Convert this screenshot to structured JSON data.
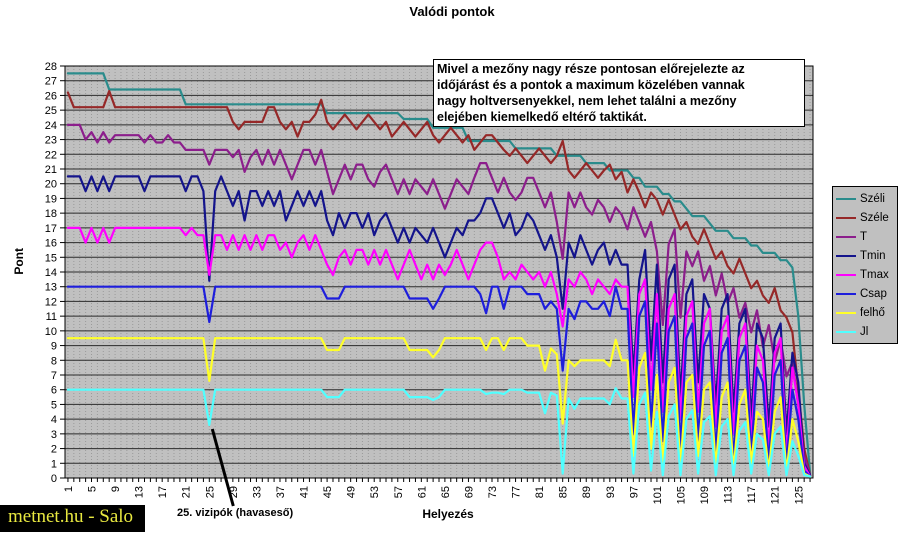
{
  "title": "Valódi pontok",
  "watermark": "metnet.hu - Salo",
  "annotation_text": "Mivel a mezőny nagy része pontosan előrejelezte az\nidőjárást és a pontok a maximum közelében vannak\nnagy holtversenyekkel, nem lehet találni a mezőny\nelejében kiemelkedő eltérő taktikát.",
  "callout_text": "25. vizipók (havaseső)",
  "chart_data": {
    "type": "line",
    "title": "Valódi pontok",
    "xlabel": "Helyezés",
    "ylabel": "Pont",
    "x_start": 1,
    "x_end": 127,
    "x_label_every": 4,
    "ylim": [
      0,
      28
    ],
    "y_tick_step": 1,
    "grid": true,
    "legend_position": "right",
    "plot_background": "#c0c0c0",
    "gridline_color": "#2b2b2b",
    "minor_vertical_color": "#9a9a9a",
    "callout": {
      "x": 25,
      "y": 3.6,
      "label": "25. vizipók (havaseső)"
    },
    "series": [
      {
        "name": "Széli",
        "color": "#2a8c8c",
        "values": [
          27.5,
          27.5,
          27.5,
          27.5,
          27.5,
          27.5,
          27.5,
          26.4,
          26.4,
          26.4,
          26.4,
          26.4,
          26.4,
          26.4,
          26.4,
          26.4,
          26.4,
          26.4,
          26.4,
          26.4,
          25.4,
          25.4,
          25.4,
          25.4,
          25.4,
          25.4,
          25.4,
          25.4,
          25.4,
          25.4,
          25.4,
          25.4,
          25.4,
          25.4,
          25.4,
          25.4,
          25.4,
          25.4,
          25.4,
          25.4,
          25.4,
          25.4,
          25.4,
          25.4,
          24.8,
          24.8,
          24.8,
          24.8,
          24.8,
          24.8,
          24.8,
          24.8,
          24.8,
          24.8,
          24.8,
          24.8,
          24.8,
          24.4,
          24.4,
          24.4,
          24.4,
          24.4,
          23.8,
          23.8,
          23.8,
          23.8,
          23.8,
          23.8,
          22.9,
          22.9,
          22.9,
          22.9,
          22.9,
          22.9,
          22.9,
          22.9,
          22.4,
          22.4,
          22.4,
          22.4,
          22.4,
          22.4,
          22.4,
          21.9,
          21.9,
          21.9,
          21.9,
          21.9,
          21.4,
          21.4,
          21.4,
          21.4,
          20.9,
          20.9,
          20.9,
          20.9,
          20.4,
          20.4,
          19.8,
          19.8,
          19.8,
          19.3,
          19.3,
          18.8,
          18.8,
          18.3,
          17.8,
          17.8,
          17.8,
          17.3,
          16.8,
          16.8,
          16.8,
          16.3,
          16.3,
          16.3,
          15.8,
          15.8,
          15.3,
          15.3,
          15.3,
          14.8,
          14.8,
          14.3,
          11.0,
          5.0,
          0.3
        ]
      },
      {
        "name": "Széle",
        "color": "#962828",
        "values": [
          26.2,
          25.2,
          25.2,
          25.2,
          25.2,
          25.2,
          25.2,
          26.3,
          25.2,
          25.2,
          25.2,
          25.2,
          25.2,
          25.2,
          25.2,
          25.2,
          25.2,
          25.2,
          25.2,
          25.2,
          25.2,
          25.2,
          25.2,
          25.2,
          25.2,
          25.2,
          25.2,
          25.2,
          24.2,
          23.7,
          24.2,
          24.2,
          24.2,
          24.2,
          25.2,
          25.2,
          24.2,
          23.7,
          24.2,
          23.2,
          24.2,
          24.2,
          24.7,
          25.7,
          24.2,
          23.7,
          24.2,
          24.7,
          24.2,
          23.7,
          24.2,
          24.7,
          24.2,
          23.7,
          24.2,
          23.2,
          23.7,
          24.2,
          23.7,
          23.2,
          23.7,
          24.2,
          23.3,
          22.8,
          23.3,
          23.8,
          23.3,
          22.8,
          23.3,
          22.3,
          22.8,
          23.3,
          23.3,
          22.8,
          22.3,
          21.9,
          22.4,
          21.9,
          21.4,
          21.9,
          22.4,
          21.9,
          21.4,
          21.9,
          22.9,
          20.9,
          20.4,
          20.9,
          21.4,
          20.9,
          20.4,
          20.9,
          21.3,
          20.3,
          20.8,
          19.4,
          20.3,
          19.4,
          18.4,
          19.4,
          18.9,
          17.9,
          18.9,
          17.9,
          16.9,
          17.4,
          16.4,
          15.9,
          16.9,
          15.9,
          14.9,
          15.4,
          14.4,
          13.9,
          14.9,
          13.9,
          12.9,
          13.4,
          12.4,
          11.9,
          12.9,
          11.4,
          10.9,
          9.9,
          6.0,
          2.0,
          0.2
        ]
      },
      {
        "name": "T",
        "color": "#8c1e8c",
        "values": [
          24.0,
          24.0,
          24.0,
          23.0,
          23.5,
          22.8,
          23.5,
          22.8,
          23.3,
          23.3,
          23.3,
          23.3,
          23.3,
          22.8,
          23.3,
          22.8,
          22.8,
          23.3,
          22.8,
          22.8,
          22.3,
          22.3,
          22.3,
          22.3,
          21.3,
          22.3,
          22.3,
          22.3,
          21.8,
          22.3,
          20.8,
          21.8,
          22.3,
          21.3,
          22.3,
          21.3,
          22.3,
          21.3,
          20.3,
          21.3,
          22.3,
          22.3,
          21.3,
          22.3,
          20.8,
          19.3,
          20.3,
          21.3,
          20.3,
          21.3,
          21.3,
          20.3,
          19.8,
          20.8,
          21.3,
          20.3,
          19.3,
          20.3,
          19.3,
          20.3,
          19.8,
          19.3,
          20.3,
          19.3,
          18.3,
          19.3,
          20.3,
          19.8,
          19.3,
          20.4,
          21.4,
          21.4,
          20.4,
          19.4,
          20.4,
          19.4,
          18.9,
          19.4,
          20.4,
          20.4,
          19.4,
          18.4,
          19.4,
          17.4,
          14.9,
          19.4,
          18.4,
          19.4,
          18.4,
          17.9,
          18.9,
          18.4,
          17.4,
          18.4,
          17.9,
          16.9,
          18.4,
          17.4,
          16.4,
          17.4,
          15.4,
          10.4,
          15.9,
          16.9,
          10.9,
          15.4,
          14.4,
          15.4,
          13.4,
          14.4,
          12.4,
          13.9,
          11.9,
          12.9,
          10.9,
          11.9,
          9.9,
          11.4,
          8.9,
          10.4,
          7.9,
          9.4,
          6.9,
          7.9,
          4.9,
          1.5,
          0.2
        ]
      },
      {
        "name": "Tmin",
        "color": "#14148c",
        "values": [
          20.5,
          20.5,
          20.5,
          19.5,
          20.5,
          19.5,
          20.5,
          19.5,
          20.5,
          20.5,
          20.5,
          20.5,
          20.5,
          19.5,
          20.5,
          20.5,
          20.5,
          20.5,
          20.5,
          20.5,
          19.5,
          20.5,
          20.5,
          19.5,
          13.4,
          19.5,
          20.5,
          19.5,
          18.5,
          19.5,
          17.5,
          19.5,
          19.5,
          18.5,
          19.5,
          18.5,
          19.5,
          17.5,
          18.5,
          19.5,
          18.5,
          19.5,
          18.5,
          19.5,
          17.5,
          16.5,
          18.0,
          17.0,
          18.0,
          18.0,
          17.0,
          18.0,
          16.5,
          17.5,
          18.0,
          17.0,
          16.0,
          17.0,
          16.0,
          17.0,
          16.5,
          16.0,
          17.0,
          16.0,
          15.0,
          16.0,
          17.0,
          16.5,
          17.5,
          17.5,
          18.0,
          19.0,
          19.0,
          18.0,
          17.0,
          18.0,
          16.5,
          17.0,
          18.0,
          17.5,
          16.5,
          15.5,
          16.5,
          15.0,
          11.5,
          16.0,
          15.0,
          16.5,
          15.5,
          14.5,
          15.5,
          16.0,
          14.5,
          15.5,
          14.5,
          14.5,
          7.0,
          13.5,
          15.5,
          8.0,
          14.5,
          6.5,
          13.5,
          14.5,
          5.5,
          12.5,
          13.5,
          6.5,
          12.5,
          11.5,
          5.0,
          11.5,
          12.5,
          4.5,
          10.5,
          11.5,
          4.0,
          10.5,
          9.5,
          3.5,
          9.5,
          10.5,
          3.0,
          8.5,
          6.5,
          1.0,
          0.2
        ]
      },
      {
        "name": "Tmax",
        "color": "#ff00ff",
        "values": [
          17.0,
          17.0,
          17.0,
          16.0,
          17.0,
          16.0,
          17.0,
          16.0,
          17.0,
          17.0,
          17.0,
          17.0,
          17.0,
          17.0,
          17.0,
          17.0,
          17.0,
          17.0,
          17.0,
          17.0,
          16.5,
          17.0,
          16.5,
          16.5,
          13.8,
          16.5,
          16.5,
          15.5,
          16.5,
          15.5,
          16.5,
          15.5,
          16.5,
          15.5,
          16.5,
          16.5,
          15.5,
          16.0,
          15.0,
          16.0,
          16.5,
          15.5,
          16.5,
          15.5,
          14.5,
          13.8,
          15.0,
          15.5,
          14.5,
          15.5,
          15.5,
          14.5,
          15.5,
          14.5,
          15.5,
          14.5,
          13.5,
          14.5,
          15.5,
          14.5,
          13.5,
          14.5,
          13.5,
          14.5,
          13.8,
          14.5,
          15.5,
          14.5,
          13.5,
          14.5,
          15.5,
          16.0,
          16.0,
          15.0,
          13.5,
          14.0,
          13.5,
          14.5,
          14.0,
          13.5,
          14.0,
          13.0,
          14.0,
          12.5,
          10.3,
          13.5,
          13.0,
          14.0,
          13.5,
          12.5,
          13.5,
          13.0,
          12.5,
          13.5,
          13.0,
          13.0,
          5.5,
          12.5,
          13.5,
          6.0,
          12.5,
          4.5,
          11.5,
          12.5,
          4.0,
          11.0,
          12.0,
          4.5,
          10.5,
          11.5,
          3.5,
          10.0,
          11.0,
          3.0,
          9.5,
          10.5,
          2.5,
          9.0,
          8.0,
          2.0,
          8.5,
          9.5,
          1.5,
          7.5,
          5.0,
          0.8,
          0.1
        ]
      },
      {
        "name": "Csap",
        "color": "#1e1edc",
        "values": [
          13.0,
          13.0,
          13.0,
          13.0,
          13.0,
          13.0,
          13.0,
          13.0,
          13.0,
          13.0,
          13.0,
          13.0,
          13.0,
          13.0,
          13.0,
          13.0,
          13.0,
          13.0,
          13.0,
          13.0,
          13.0,
          13.0,
          13.0,
          13.0,
          10.6,
          13.0,
          13.0,
          13.0,
          13.0,
          13.0,
          13.0,
          13.0,
          13.0,
          13.0,
          13.0,
          13.0,
          13.0,
          13.0,
          13.0,
          13.0,
          13.0,
          13.0,
          13.0,
          13.0,
          12.2,
          12.2,
          12.2,
          13.0,
          13.0,
          13.0,
          13.0,
          13.0,
          13.0,
          13.0,
          13.0,
          13.0,
          13.0,
          13.0,
          12.2,
          12.2,
          12.2,
          12.2,
          11.5,
          12.2,
          13.0,
          13.0,
          13.0,
          13.0,
          13.0,
          13.0,
          12.5,
          11.2,
          13.0,
          13.0,
          11.5,
          13.0,
          13.0,
          13.0,
          12.5,
          12.5,
          12.5,
          11.5,
          12.0,
          11.5,
          7.3,
          11.5,
          10.8,
          12.0,
          12.0,
          11.5,
          11.5,
          12.0,
          11.0,
          13.0,
          11.5,
          11.5,
          3.0,
          11.0,
          12.0,
          3.5,
          10.5,
          2.5,
          10.0,
          11.0,
          2.0,
          9.5,
          10.5,
          2.5,
          9.0,
          10.0,
          1.5,
          8.5,
          9.5,
          1.0,
          8.0,
          9.0,
          1.5,
          7.5,
          6.5,
          1.0,
          7.0,
          8.0,
          0.8,
          6.0,
          4.0,
          0.5,
          0.1
        ]
      },
      {
        "name": "felhő",
        "color": "#ffff28",
        "values": [
          9.5,
          9.5,
          9.5,
          9.5,
          9.5,
          9.5,
          9.5,
          9.5,
          9.5,
          9.5,
          9.5,
          9.5,
          9.5,
          9.5,
          9.5,
          9.5,
          9.5,
          9.5,
          9.5,
          9.5,
          9.5,
          9.5,
          9.5,
          9.5,
          6.6,
          9.5,
          9.5,
          9.5,
          9.5,
          9.5,
          9.5,
          9.5,
          9.5,
          9.5,
          9.5,
          9.5,
          9.5,
          9.5,
          9.5,
          9.5,
          9.5,
          9.5,
          9.5,
          9.5,
          8.7,
          8.7,
          8.7,
          9.5,
          9.5,
          9.5,
          9.5,
          9.5,
          9.5,
          9.5,
          9.5,
          9.5,
          9.5,
          9.5,
          8.7,
          8.7,
          8.7,
          8.7,
          8.2,
          8.7,
          9.5,
          9.5,
          9.5,
          9.5,
          9.5,
          9.5,
          9.5,
          8.7,
          9.5,
          9.5,
          8.7,
          9.5,
          9.5,
          9.5,
          9.0,
          9.0,
          9.0,
          7.3,
          8.8,
          8.4,
          3.7,
          8.0,
          7.6,
          8.0,
          8.0,
          8.0,
          8.0,
          8.0,
          7.6,
          9.4,
          8.0,
          8.0,
          1.5,
          7.5,
          8.5,
          2.0,
          7.0,
          1.0,
          6.5,
          7.5,
          0.8,
          6.5,
          7.0,
          1.5,
          6.0,
          6.5,
          0.8,
          5.5,
          6.5,
          0.5,
          5.0,
          6.0,
          1.0,
          4.5,
          4.0,
          0.5,
          4.5,
          5.5,
          0.4,
          4.0,
          2.5,
          0.3,
          0.1
        ]
      },
      {
        "name": "Jl",
        "color": "#50ffff",
        "values": [
          6.0,
          6.0,
          6.0,
          6.0,
          6.0,
          6.0,
          6.0,
          6.0,
          6.0,
          6.0,
          6.0,
          6.0,
          6.0,
          6.0,
          6.0,
          6.0,
          6.0,
          6.0,
          6.0,
          6.0,
          6.0,
          6.0,
          6.0,
          6.0,
          3.6,
          6.0,
          6.0,
          6.0,
          6.0,
          6.0,
          6.0,
          6.0,
          6.0,
          6.0,
          6.0,
          6.0,
          6.0,
          6.0,
          6.0,
          6.0,
          6.0,
          6.0,
          6.0,
          6.0,
          5.5,
          5.5,
          5.5,
          6.0,
          6.0,
          6.0,
          6.0,
          6.0,
          6.0,
          6.0,
          6.0,
          6.0,
          6.0,
          6.0,
          5.5,
          5.5,
          5.5,
          5.5,
          5.3,
          5.5,
          6.0,
          6.0,
          6.0,
          6.0,
          6.0,
          6.0,
          6.0,
          5.7,
          5.8,
          5.8,
          5.7,
          6.0,
          6.0,
          6.0,
          5.8,
          5.8,
          5.8,
          4.4,
          5.8,
          5.6,
          0.3,
          5.4,
          4.7,
          5.4,
          5.4,
          5.4,
          5.4,
          5.4,
          5.0,
          6.1,
          5.4,
          5.4,
          0.3,
          5.0,
          5.8,
          0.5,
          4.5,
          0.2,
          4.2,
          5.0,
          0.2,
          4.0,
          4.6,
          0.3,
          3.8,
          4.2,
          0.2,
          3.5,
          4.0,
          0.2,
          3.2,
          3.8,
          0.3,
          3.0,
          2.6,
          0.2,
          3.0,
          3.5,
          0.2,
          2.5,
          1.5,
          0.2,
          0.1
        ]
      }
    ]
  }
}
